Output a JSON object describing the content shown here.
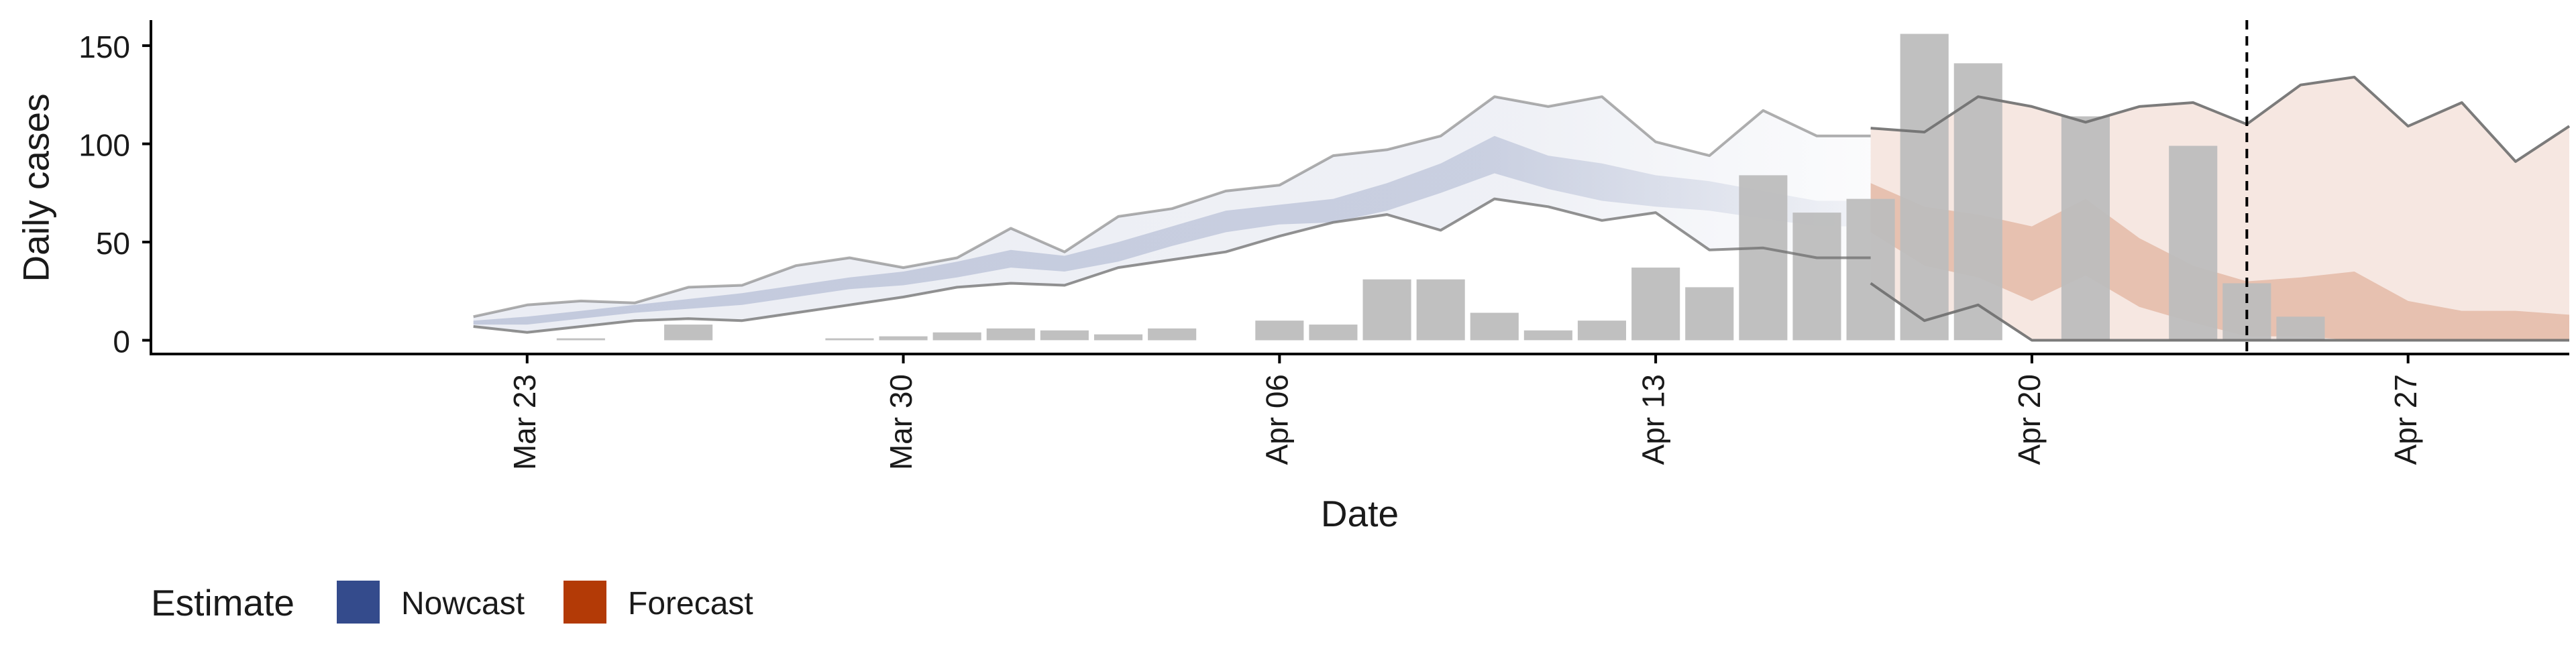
{
  "chart_data": {
    "type": "bar",
    "title": "",
    "xlabel": "Date",
    "ylabel": "Daily cases",
    "ylim": [
      -7,
      163
    ],
    "xlim": [
      "2020-03-16",
      "2020-04-30"
    ],
    "grid": false,
    "y_ticks": [
      0,
      50,
      100,
      150
    ],
    "x_ticks": [
      {
        "date": "2020-03-23",
        "label": "Mar 23"
      },
      {
        "date": "2020-03-30",
        "label": "Mar 30"
      },
      {
        "date": "2020-04-06",
        "label": "Apr 06"
      },
      {
        "date": "2020-04-13",
        "label": "Apr 13"
      },
      {
        "date": "2020-04-20",
        "label": "Apr 20"
      },
      {
        "date": "2020-04-27",
        "label": "Apr 27"
      }
    ],
    "reference_line_date": "2020-04-24",
    "legend": {
      "title": "Estimate",
      "position": "bottom-left",
      "items": [
        {
          "name": "Nowcast",
          "color": "#344b8c"
        },
        {
          "name": "Forecast",
          "color": "#b33a06"
        }
      ]
    },
    "colors": {
      "bars": "#bdbdbd",
      "nowcast": "#344b8c",
      "forecast": "#b33a06",
      "bound_line": "#6e6e6e",
      "reference_line": "#000000"
    },
    "bars": [
      {
        "date": "2020-03-22",
        "value": 0
      },
      {
        "date": "2020-03-23",
        "value": 0
      },
      {
        "date": "2020-03-24",
        "value": 1
      },
      {
        "date": "2020-03-25",
        "value": 0
      },
      {
        "date": "2020-03-26",
        "value": 8
      },
      {
        "date": "2020-03-27",
        "value": 0
      },
      {
        "date": "2020-03-28",
        "value": 0
      },
      {
        "date": "2020-03-29",
        "value": 1
      },
      {
        "date": "2020-03-30",
        "value": 2
      },
      {
        "date": "2020-03-31",
        "value": 4
      },
      {
        "date": "2020-04-01",
        "value": 6
      },
      {
        "date": "2020-04-02",
        "value": 5
      },
      {
        "date": "2020-04-03",
        "value": 3
      },
      {
        "date": "2020-04-04",
        "value": 6
      },
      {
        "date": "2020-04-05",
        "value": 0
      },
      {
        "date": "2020-04-06",
        "value": 10
      },
      {
        "date": "2020-04-07",
        "value": 8
      },
      {
        "date": "2020-04-08",
        "value": 31
      },
      {
        "date": "2020-04-09",
        "value": 31
      },
      {
        "date": "2020-04-10",
        "value": 14
      },
      {
        "date": "2020-04-11",
        "value": 5
      },
      {
        "date": "2020-04-12",
        "value": 10
      },
      {
        "date": "2020-04-13",
        "value": 37
      },
      {
        "date": "2020-04-14",
        "value": 27
      },
      {
        "date": "2020-04-15",
        "value": 84
      },
      {
        "date": "2020-04-16",
        "value": 65
      },
      {
        "date": "2020-04-17",
        "value": 72
      },
      {
        "date": "2020-04-18",
        "value": 156
      },
      {
        "date": "2020-04-19",
        "value": 141
      },
      {
        "date": "2020-04-20",
        "value": 0
      },
      {
        "date": "2020-04-21",
        "value": 114
      },
      {
        "date": "2020-04-22",
        "value": 0
      },
      {
        "date": "2020-04-23",
        "value": 99
      },
      {
        "date": "2020-04-24",
        "value": 29
      },
      {
        "date": "2020-04-25",
        "value": 12
      }
    ],
    "series": [
      {
        "name": "Nowcast",
        "color": "#344b8c",
        "dates": [
          "2020-03-22",
          "2020-03-23",
          "2020-03-24",
          "2020-03-25",
          "2020-03-26",
          "2020-03-27",
          "2020-03-28",
          "2020-03-29",
          "2020-03-30",
          "2020-03-31",
          "2020-04-01",
          "2020-04-02",
          "2020-04-03",
          "2020-04-04",
          "2020-04-05",
          "2020-04-06",
          "2020-04-07",
          "2020-04-08",
          "2020-04-09",
          "2020-04-10",
          "2020-04-11",
          "2020-04-12",
          "2020-04-13",
          "2020-04-14",
          "2020-04-15",
          "2020-04-16",
          "2020-04-17"
        ],
        "lower_outer": [
          7,
          4,
          7,
          10,
          11,
          10,
          14,
          18,
          22,
          27,
          29,
          28,
          37,
          41,
          45,
          53,
          60,
          64,
          56,
          72,
          68,
          61,
          65,
          46,
          47,
          42,
          42
        ],
        "upper_outer": [
          12,
          18,
          20,
          19,
          27,
          28,
          38,
          42,
          37,
          42,
          57,
          45,
          63,
          67,
          76,
          79,
          94,
          97,
          104,
          124,
          119,
          124,
          101,
          94,
          117,
          104,
          104
        ],
        "lower_inner": [
          8,
          8,
          11,
          14,
          16,
          18,
          22,
          26,
          28,
          32,
          37,
          35,
          40,
          48,
          55,
          59,
          60,
          66,
          75,
          85,
          77,
          71,
          68,
          66,
          62,
          58,
          58
        ],
        "upper_inner": [
          10,
          12,
          15,
          18,
          21,
          24,
          28,
          32,
          35,
          40,
          46,
          43,
          50,
          58,
          66,
          69,
          72,
          80,
          90,
          104,
          94,
          90,
          84,
          81,
          76,
          71,
          71
        ]
      },
      {
        "name": "Forecast",
        "color": "#b33a06",
        "dates": [
          "2020-04-17",
          "2020-04-18",
          "2020-04-19",
          "2020-04-20",
          "2020-04-21",
          "2020-04-22",
          "2020-04-23",
          "2020-04-24",
          "2020-04-25",
          "2020-04-26",
          "2020-04-27",
          "2020-04-28",
          "2020-04-29",
          "2020-04-30"
        ],
        "lower_outer": [
          29,
          10,
          18,
          0,
          0,
          0,
          0,
          0,
          0,
          0,
          0,
          0,
          0,
          0
        ],
        "upper_outer": [
          108,
          106,
          124,
          119,
          111,
          119,
          121,
          110,
          130,
          134,
          109,
          121,
          91,
          109
        ],
        "lower_inner": [
          55,
          38,
          32,
          20,
          33,
          17,
          9,
          2,
          2,
          0,
          0,
          0,
          0,
          0
        ],
        "upper_inner": [
          80,
          68,
          64,
          58,
          72,
          52,
          38,
          30,
          32,
          35,
          20,
          15,
          15,
          13
        ]
      }
    ]
  }
}
